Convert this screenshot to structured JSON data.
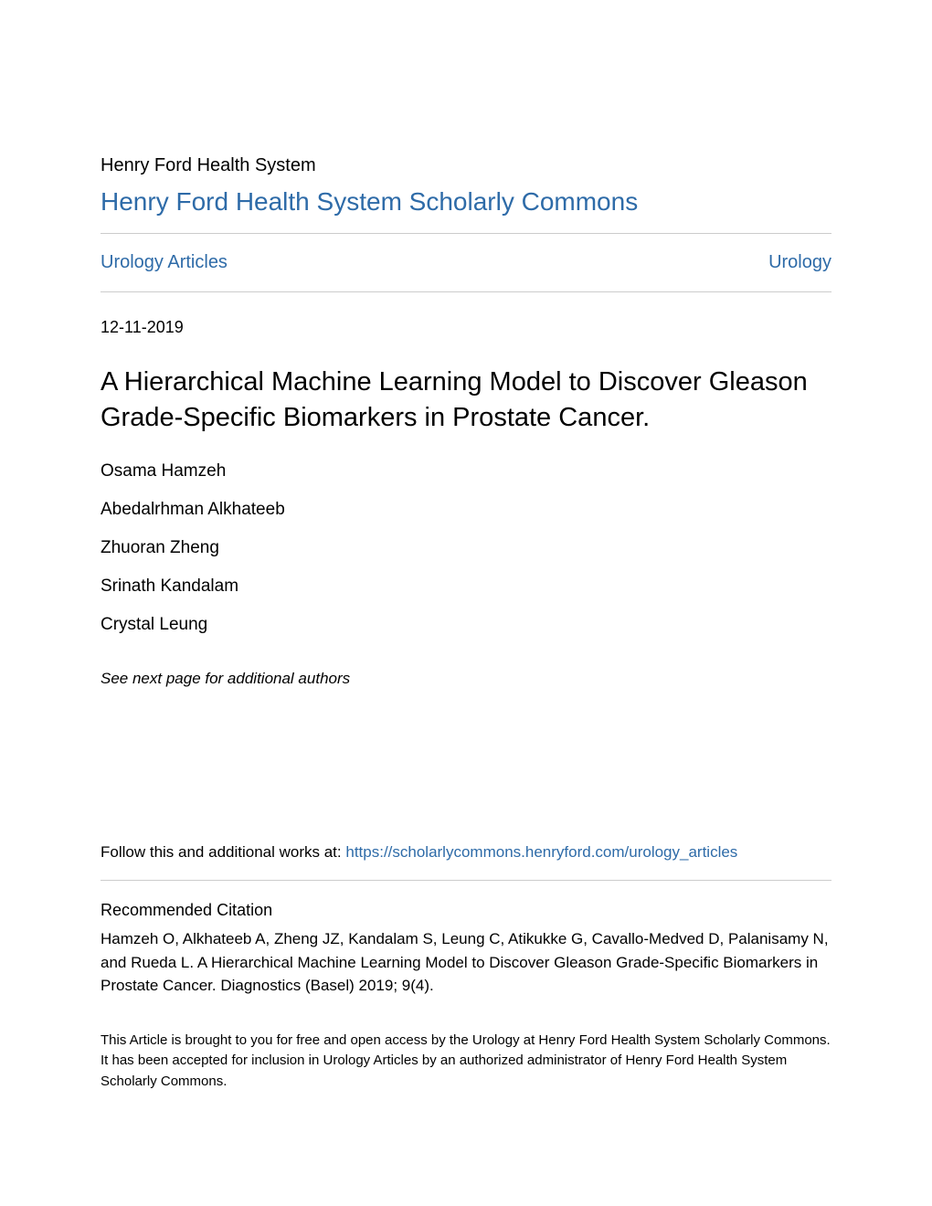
{
  "header": {
    "institution": "Henry Ford Health System",
    "repository_title": "Henry Ford Health System Scholarly Commons"
  },
  "nav": {
    "left_link": "Urology Articles",
    "right_link": "Urology"
  },
  "article": {
    "date": "12-11-2019",
    "title": "A Hierarchical Machine Learning Model to Discover Gleason Grade-Specific Biomarkers in Prostate Cancer.",
    "authors": [
      "Osama Hamzeh",
      "Abedalrhman Alkhateeb",
      "Zhuoran Zheng",
      "Srinath Kandalam",
      "Crystal Leung"
    ],
    "additional_authors_note": "See next page for additional authors"
  },
  "follow": {
    "prefix": "Follow this and additional works at: ",
    "url": "https://scholarlycommons.henryford.com/urology_articles"
  },
  "citation": {
    "heading": "Recommended Citation",
    "text": "Hamzeh O, Alkhateeb A, Zheng JZ, Kandalam S, Leung C, Atikukke G, Cavallo-Medved D, Palanisamy N, and Rueda L. A Hierarchical Machine Learning Model to Discover Gleason Grade-Specific Biomarkers in Prostate Cancer. Diagnostics (Basel) 2019; 9(4)."
  },
  "access_statement": "This Article is brought to you for free and open access by the Urology at Henry Ford Health System Scholarly Commons. It has been accepted for inclusion in Urology Articles by an authorized administrator of Henry Ford Health System Scholarly Commons.",
  "colors": {
    "link_color": "#2e6ba8",
    "text_color": "#000000",
    "divider_color": "#cccccc",
    "background": "#ffffff"
  }
}
